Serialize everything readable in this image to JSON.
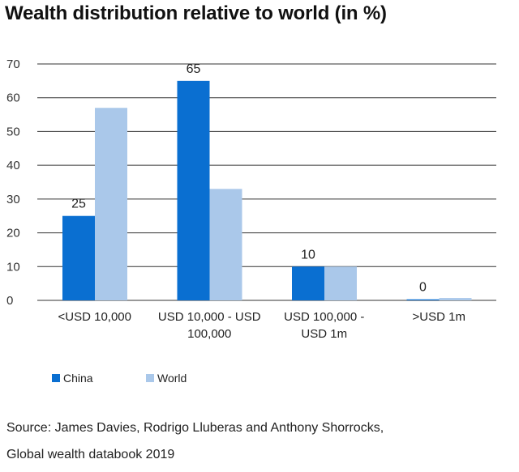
{
  "chart_data": {
    "type": "bar",
    "title": "Wealth distribution relative to world (in %)",
    "categories": [
      "<USD 10,000",
      "USD 10,000 - USD 100,000",
      "USD 100,000 - USD 1m",
      ">USD 1m"
    ],
    "category_lines": [
      [
        "<USD 10,000"
      ],
      [
        "USD 10,000 - USD",
        "100,000"
      ],
      [
        "USD 100,000 -",
        "USD 1m"
      ],
      [
        ">USD 1m"
      ]
    ],
    "series": [
      {
        "name": "China",
        "values": [
          25,
          65,
          10,
          0.3
        ],
        "labels": [
          "25",
          "65",
          "10",
          "0"
        ],
        "color": "#0a6fd1"
      },
      {
        "name": "World",
        "values": [
          57,
          33,
          10,
          0.7
        ],
        "color": "#aac8ea"
      }
    ],
    "ylim": [
      0,
      70
    ],
    "yticks": [
      0,
      10,
      20,
      30,
      40,
      50,
      60,
      70
    ],
    "grid": true,
    "legend": "bottom-left"
  },
  "source": {
    "line1": "Source: James Davies, Rodrigo Lluberas and Anthony Shorrocks,",
    "line2": "Global wealth databook 2019"
  }
}
